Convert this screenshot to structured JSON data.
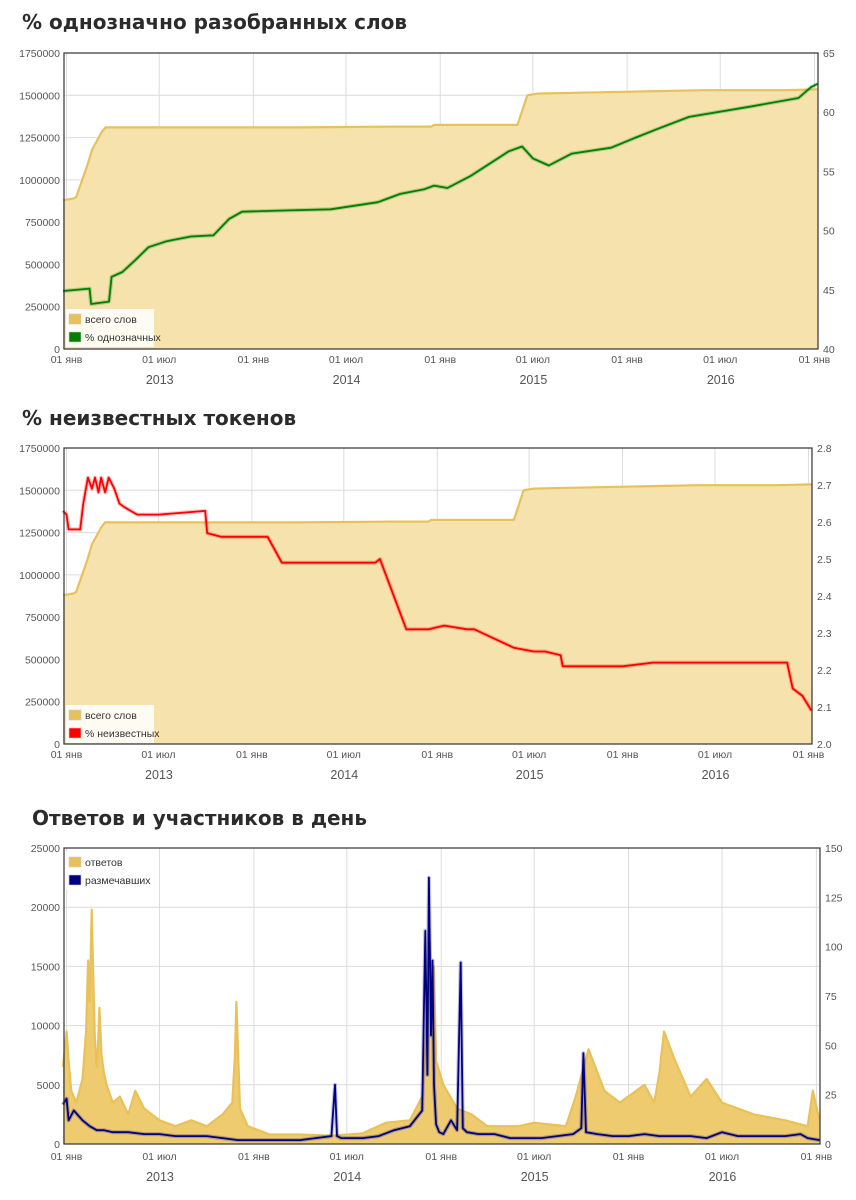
{
  "charts": [
    {
      "title": "% однозначно разобранных слов",
      "legend": [
        {
          "label": "всего слов",
          "color": "#e8c15a"
        },
        {
          "label": "% однозначных",
          "color": "#008000"
        }
      ]
    },
    {
      "title": "% неизвестных токенов",
      "legend": [
        {
          "label": "всего слов",
          "color": "#e8c15a"
        },
        {
          "label": "% неизвестных",
          "color": "#ff0000"
        }
      ]
    },
    {
      "title": "Ответов и участников в день",
      "legend": [
        {
          "label": "ответов",
          "color": "#e8c15a"
        },
        {
          "label": "размечавших",
          "color": "#000080"
        }
      ]
    }
  ],
  "chart_data": [
    {
      "type": "area",
      "title": "% однозначно разобранных слов",
      "x_ticks": [
        "01 янв",
        "01 июл",
        "01 янв",
        "01 июл",
        "01 янв",
        "01 июл",
        "01 янв",
        "01 июл",
        "01 янв"
      ],
      "x_years": [
        "2013",
        "2014",
        "2015",
        "2016"
      ],
      "y_left_ticks": [
        0,
        250000,
        500000,
        750000,
        1000000,
        1250000,
        1500000,
        1750000
      ],
      "y_right_ticks": [
        40,
        45,
        50,
        55,
        60,
        65
      ],
      "ylim_left": [
        0,
        1750000
      ],
      "ylim_right": [
        40,
        65
      ],
      "grid": true,
      "legend_position": "bottom-left",
      "series": [
        {
          "name": "всего слов",
          "axis": "left",
          "style": "area",
          "color": "#e8c15a",
          "fill": "#f5e2ad",
          "x": [
            "2012-12-25",
            "2013-01-15",
            "2013-01-20",
            "2013-02-10",
            "2013-02-20",
            "2013-03-01",
            "2013-03-10",
            "2013-03-18",
            "2013-10-01",
            "2014-04-01",
            "2014-10-01",
            "2014-12-15",
            "2014-12-20",
            "2015-06-01",
            "2015-06-20",
            "2015-07-10",
            "2015-10-01",
            "2016-03-01",
            "2016-06-01",
            "2016-11-01",
            "2017-01-07"
          ],
          "values": [
            880000,
            890000,
            900000,
            1080000,
            1180000,
            1230000,
            1280000,
            1310000,
            1310000,
            1310000,
            1315000,
            1315000,
            1325000,
            1325000,
            1500000,
            1510000,
            1515000,
            1525000,
            1530000,
            1530000,
            1535000
          ]
        },
        {
          "name": "% однозначных",
          "axis": "right",
          "style": "line",
          "color": "#008000",
          "x": [
            "2012-12-25",
            "2013-02-15",
            "2013-02-18",
            "2013-03-25",
            "2013-03-30",
            "2013-04-20",
            "2013-05-15",
            "2013-06-10",
            "2013-07-15",
            "2013-09-01",
            "2013-10-15",
            "2013-11-15",
            "2013-12-10",
            "2014-03-01",
            "2014-06-01",
            "2014-09-01",
            "2014-10-15",
            "2014-12-01",
            "2014-12-20",
            "2015-01-15",
            "2015-03-01",
            "2015-05-15",
            "2015-06-10",
            "2015-07-01",
            "2015-08-01",
            "2015-09-15",
            "2015-12-01",
            "2016-01-15",
            "2016-03-01",
            "2016-05-01",
            "2016-09-01",
            "2016-12-01",
            "2016-12-25",
            "2017-01-07"
          ],
          "values": [
            44.9,
            45.1,
            43.8,
            44,
            46.1,
            46.5,
            47.5,
            48.6,
            49.1,
            49.5,
            49.6,
            51,
            51.6,
            51.7,
            51.8,
            52.4,
            53.1,
            53.5,
            53.8,
            53.6,
            54.6,
            56.7,
            57.1,
            56.1,
            55.5,
            56.5,
            57,
            57.8,
            58.6,
            59.6,
            60.5,
            61.2,
            62.1,
            62.4
          ]
        }
      ]
    },
    {
      "type": "area",
      "title": "% неизвестных токенов",
      "x_ticks": [
        "01 янв",
        "01 июл",
        "01 янв",
        "01 июл",
        "01 янв",
        "01 июл",
        "01 янв",
        "01 июл",
        "01 янв"
      ],
      "x_years": [
        "2013",
        "2014",
        "2015",
        "2016"
      ],
      "y_left_ticks": [
        0,
        250000,
        500000,
        750000,
        1000000,
        1250000,
        1500000,
        1750000
      ],
      "y_right_ticks": [
        2.0,
        2.1,
        2.2,
        2.3,
        2.4,
        2.5,
        2.6,
        2.7,
        2.8
      ],
      "ylim_left": [
        0,
        1750000
      ],
      "ylim_right": [
        2.0,
        2.8
      ],
      "grid": true,
      "legend_position": "bottom-left",
      "series": [
        {
          "name": "всего слов",
          "axis": "left",
          "style": "area",
          "color": "#e8c15a",
          "fill": "#f5e2ad",
          "x": [
            "2012-12-25",
            "2013-01-15",
            "2013-01-20",
            "2013-02-10",
            "2013-02-20",
            "2013-03-01",
            "2013-03-10",
            "2013-03-18",
            "2013-10-01",
            "2014-04-01",
            "2014-10-01",
            "2014-12-15",
            "2014-12-20",
            "2015-06-01",
            "2015-06-20",
            "2015-07-10",
            "2015-10-01",
            "2016-03-01",
            "2016-06-01",
            "2016-11-01",
            "2017-01-07"
          ],
          "values": [
            880000,
            890000,
            900000,
            1080000,
            1180000,
            1230000,
            1280000,
            1310000,
            1310000,
            1310000,
            1315000,
            1315000,
            1325000,
            1325000,
            1500000,
            1510000,
            1515000,
            1525000,
            1530000,
            1530000,
            1535000
          ]
        },
        {
          "name": "% неизвестных",
          "axis": "right",
          "style": "line",
          "color": "#ff0000",
          "x": [
            "2012-12-25",
            "2013-01-01",
            "2013-01-05",
            "2013-01-28",
            "2013-02-03",
            "2013-02-12",
            "2013-02-20",
            "2013-02-26",
            "2013-03-05",
            "2013-03-10",
            "2013-03-18",
            "2013-03-25",
            "2013-04-05",
            "2013-04-15",
            "2013-04-25",
            "2013-05-20",
            "2013-07-01",
            "2013-10-01",
            "2013-10-05",
            "2013-11-01",
            "2014-01-15",
            "2014-02-01",
            "2014-03-01",
            "2014-06-01",
            "2014-09-01",
            "2014-09-10",
            "2014-11-01",
            "2014-12-15",
            "2015-01-15",
            "2015-03-01",
            "2015-03-15",
            "2015-04-15",
            "2015-06-01",
            "2015-07-10",
            "2015-08-01",
            "2015-09-01",
            "2015-09-05",
            "2016-01-01",
            "2016-03-01",
            "2016-04-01",
            "2016-06-01",
            "2016-11-20",
            "2016-12-01",
            "2016-12-20",
            "2017-01-07"
          ],
          "values": [
            2.63,
            2.62,
            2.58,
            2.58,
            2.65,
            2.72,
            2.69,
            2.72,
            2.68,
            2.72,
            2.68,
            2.72,
            2.69,
            2.65,
            2.64,
            2.62,
            2.62,
            2.63,
            2.57,
            2.56,
            2.56,
            2.56,
            2.49,
            2.49,
            2.49,
            2.5,
            2.31,
            2.31,
            2.32,
            2.31,
            2.31,
            2.29,
            2.26,
            2.25,
            2.25,
            2.24,
            2.21,
            2.21,
            2.22,
            2.22,
            2.22,
            2.22,
            2.15,
            2.13,
            2.09
          ]
        }
      ]
    },
    {
      "type": "area",
      "title": "Ответов и участников в день",
      "x_ticks": [
        "01 янв",
        "01 июл",
        "01 янв",
        "01 июл",
        "01 янв",
        "01 июл",
        "01 янв",
        "01 июл",
        "01 янв"
      ],
      "x_years": [
        "2013",
        "2014",
        "2015",
        "2016"
      ],
      "y_left_ticks": [
        0,
        5000,
        10000,
        15000,
        20000,
        25000
      ],
      "y_right_ticks": [
        0,
        25,
        50,
        75,
        100,
        125,
        150
      ],
      "ylim_left": [
        0,
        25000
      ],
      "ylim_right": [
        0,
        150
      ],
      "grid": true,
      "legend_position": "top-left",
      "series": [
        {
          "name": "ответов",
          "axis": "left",
          "style": "area",
          "color": "#e8c15a",
          "fill": "#eecb6e",
          "x": [
            "2012-12-25",
            "2013-01-01",
            "2013-01-05",
            "2013-01-10",
            "2013-01-20",
            "2013-02-01",
            "2013-02-08",
            "2013-02-12",
            "2013-02-15",
            "2013-02-19",
            "2013-02-22",
            "2013-02-25",
            "2013-03-01",
            "2013-03-03",
            "2013-03-06",
            "2013-03-10",
            "2013-03-15",
            "2013-03-20",
            "2013-04-01",
            "2013-04-15",
            "2013-05-01",
            "2013-05-15",
            "2013-06-01",
            "2013-07-01",
            "2013-08-01",
            "2013-09-01",
            "2013-10-01",
            "2013-11-01",
            "2013-11-20",
            "2013-11-25",
            "2013-11-28",
            "2013-12-05",
            "2013-12-20",
            "2014-02-01",
            "2014-04-01",
            "2014-06-01",
            "2014-08-01",
            "2014-09-15",
            "2014-11-01",
            "2014-11-25",
            "2014-12-01",
            "2014-12-05",
            "2014-12-10",
            "2014-12-15",
            "2014-12-18",
            "2014-12-22",
            "2015-01-05",
            "2015-02-01",
            "2015-03-01",
            "2015-04-01",
            "2015-06-01",
            "2015-07-01",
            "2015-09-01",
            "2015-09-20",
            "2015-10-15",
            "2015-11-15",
            "2015-12-15",
            "2016-02-01",
            "2016-02-20",
            "2016-03-01",
            "2016-03-10",
            "2016-04-01",
            "2016-05-01",
            "2016-06-01",
            "2016-07-01",
            "2016-09-01",
            "2016-11-01",
            "2016-12-15",
            "2016-12-25",
            "2017-01-07"
          ],
          "values": [
            6500,
            9500,
            7000,
            4500,
            3500,
            5500,
            9500,
            15500,
            12000,
            19800,
            14000,
            9000,
            6500,
            8000,
            11500,
            7500,
            6000,
            5000,
            3500,
            4000,
            2500,
            4500,
            3000,
            2000,
            1500,
            2000,
            1500,
            2500,
            3500,
            7500,
            12000,
            3000,
            1500,
            800,
            800,
            700,
            900,
            1800,
            2000,
            4000,
            8000,
            12000,
            17000,
            9000,
            15000,
            7000,
            5000,
            3000,
            2500,
            1500,
            1500,
            1800,
            1500,
            4000,
            8000,
            4500,
            3500,
            5000,
            3500,
            6000,
            9500,
            7000,
            4000,
            5500,
            3500,
            2500,
            2000,
            1500,
            4500,
            2000
          ]
        },
        {
          "name": "размечавших",
          "axis": "right",
          "style": "line",
          "color": "#000080",
          "x": [
            "2012-12-25",
            "2013-01-01",
            "2013-01-05",
            "2013-01-15",
            "2013-02-01",
            "2013-02-15",
            "2013-03-01",
            "2013-03-15",
            "2013-04-01",
            "2013-05-01",
            "2013-06-01",
            "2013-07-01",
            "2013-08-01",
            "2013-09-01",
            "2013-10-01",
            "2013-11-01",
            "2013-12-01",
            "2014-01-01",
            "2014-02-01",
            "2014-03-01",
            "2014-04-01",
            "2014-05-01",
            "2014-06-01",
            "2014-06-08",
            "2014-06-12",
            "2014-06-20",
            "2014-08-01",
            "2014-09-01",
            "2014-10-01",
            "2014-11-01",
            "2014-11-25",
            "2014-12-01",
            "2014-12-05",
            "2014-12-08",
            "2014-12-12",
            "2014-12-15",
            "2014-12-18",
            "2014-12-22",
            "2014-12-28",
            "2015-01-05",
            "2015-01-20",
            "2015-02-01",
            "2015-02-08",
            "2015-02-12",
            "2015-02-20",
            "2015-03-15",
            "2015-04-15",
            "2015-05-15",
            "2015-06-15",
            "2015-07-15",
            "2015-08-15",
            "2015-09-15",
            "2015-10-01",
            "2015-10-05",
            "2015-10-10",
            "2015-11-01",
            "2015-12-01",
            "2016-01-01",
            "2016-02-01",
            "2016-03-01",
            "2016-04-01",
            "2016-05-01",
            "2016-06-01",
            "2016-07-01",
            "2016-08-01",
            "2016-09-01",
            "2016-10-01",
            "2016-11-01",
            "2016-12-01",
            "2016-12-15",
            "2017-01-07"
          ],
          "values": [
            20,
            23,
            12,
            17,
            12,
            9,
            7,
            7,
            6,
            6,
            5,
            5,
            4,
            4,
            4,
            3,
            2,
            2,
            2,
            2,
            2,
            3,
            4,
            30,
            4,
            3,
            3,
            4,
            7,
            9,
            17,
            108,
            35,
            135,
            55,
            93,
            30,
            10,
            6,
            5,
            12,
            7,
            92,
            8,
            6,
            5,
            5,
            3,
            3,
            3,
            4,
            5,
            8,
            46,
            6,
            5,
            4,
            4,
            5,
            4,
            4,
            4,
            3,
            6,
            4,
            4,
            4,
            4,
            5,
            3,
            2
          ]
        }
      ]
    }
  ]
}
